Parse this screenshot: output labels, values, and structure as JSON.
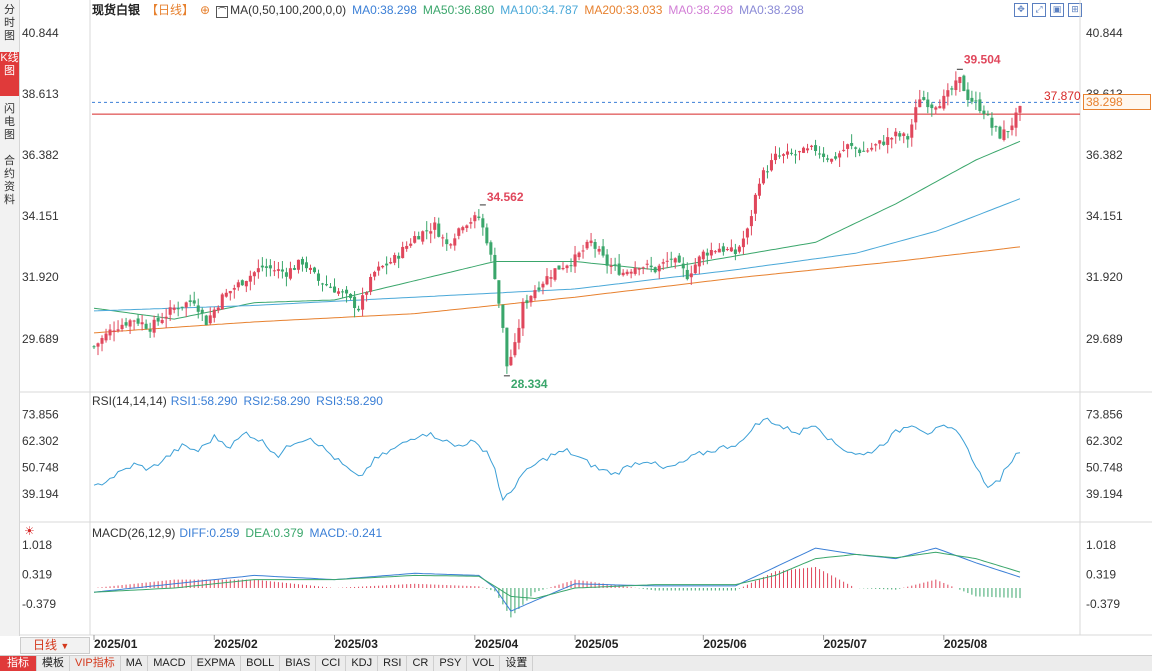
{
  "sidebar": {
    "tabs": [
      "分时图",
      "K线图",
      "闪电图",
      "合约资料"
    ],
    "active": 1
  },
  "header": {
    "name": "现货白银",
    "period": "【日线】",
    "ma_label": "MA(0,50,100,200,0,0)",
    "ma_items": [
      {
        "text": "MA0:38.298",
        "color": "#3b7fd6"
      },
      {
        "text": "MA50:36.880",
        "color": "#3aa66b"
      },
      {
        "text": "MA100:34.787",
        "color": "#4aa8d8"
      },
      {
        "text": "MA200:33.033",
        "color": "#e7812f"
      },
      {
        "text": "MA0:38.298",
        "color": "#d27ed6"
      },
      {
        "text": "MA0:38.298",
        "color": "#8a8ad6"
      }
    ]
  },
  "price_axis": [
    "40.844",
    "38.613",
    "36.382",
    "34.151",
    "31.920",
    "29.689"
  ],
  "price_tags": {
    "last": "38.298",
    "line": "37.870"
  },
  "annotations": {
    "high1": "34.562",
    "low": "28.334",
    "high2": "39.504"
  },
  "rsi": {
    "title": "RSI(14,14,14)",
    "items": [
      {
        "text": "RSI1:58.290"
      },
      {
        "text": "RSI2:58.290"
      },
      {
        "text": "RSI3:58.290"
      }
    ],
    "axis": [
      "73.856",
      "62.302",
      "50.748",
      "39.194"
    ]
  },
  "macd": {
    "title": "MACD(26,12,9)",
    "items": [
      {
        "text": "DIFF:0.259",
        "color": "#3b7fd6"
      },
      {
        "text": "DEA:0.379",
        "color": "#3aa66b"
      },
      {
        "text": "MACD:-0.241",
        "color": "#3b7fd6"
      }
    ],
    "axis": [
      "1.018",
      "0.319",
      "-0.379"
    ]
  },
  "x_axis": [
    "2025/01",
    "2025/02",
    "2025/03",
    "2025/04",
    "2025/05",
    "2025/06",
    "2025/07",
    "2025/08"
  ],
  "period_label": "日线",
  "bottom_tabs": [
    "指标",
    "模板",
    "VIP指标",
    "MA",
    "MACD",
    "EXPMA",
    "BOLL",
    "BIAS",
    "CCI",
    "KDJ",
    "RSI",
    "CR",
    "PSY",
    "VOL",
    "设置"
  ],
  "chart_data": {
    "type": "candlestick",
    "title": "现货白银【日线】",
    "ylim": [
      28.0,
      41.3
    ],
    "keypoints": [
      [
        0,
        29.4
      ],
      [
        5,
        30.1
      ],
      [
        10,
        30.4
      ],
      [
        14,
        30.1
      ],
      [
        20,
        30.8
      ],
      [
        25,
        31.1
      ],
      [
        28,
        30.3
      ],
      [
        32,
        31.2
      ],
      [
        38,
        31.9
      ],
      [
        42,
        32.3
      ],
      [
        48,
        32.1
      ],
      [
        52,
        32.5
      ],
      [
        56,
        31.8
      ],
      [
        60,
        31.5
      ],
      [
        63,
        31.2
      ],
      [
        66,
        30.8
      ],
      [
        70,
        32.1
      ],
      [
        75,
        32.6
      ],
      [
        80,
        33.4
      ],
      [
        85,
        33.8
      ],
      [
        88,
        33.1
      ],
      [
        92,
        33.9
      ],
      [
        96,
        34.1
      ],
      [
        98,
        33.3
      ],
      [
        100,
        32.0
      ],
      [
        102,
        30.0
      ],
      [
        103,
        28.7
      ],
      [
        105,
        29.4
      ],
      [
        107,
        30.9
      ],
      [
        110,
        31.5
      ],
      [
        115,
        32.2
      ],
      [
        120,
        32.6
      ],
      [
        124,
        33.2
      ],
      [
        128,
        32.4
      ],
      [
        132,
        32.1
      ],
      [
        136,
        32.4
      ],
      [
        140,
        32.2
      ],
      [
        144,
        32.6
      ],
      [
        148,
        32.0
      ],
      [
        152,
        32.8
      ],
      [
        156,
        33.0
      ],
      [
        160,
        32.8
      ],
      [
        163,
        33.6
      ],
      [
        166,
        35.5
      ],
      [
        170,
        36.3
      ],
      [
        175,
        36.4
      ],
      [
        180,
        36.6
      ],
      [
        184,
        36.2
      ],
      [
        188,
        36.7
      ],
      [
        192,
        36.5
      ],
      [
        196,
        36.8
      ],
      [
        200,
        37.1
      ],
      [
        203,
        37.0
      ],
      [
        206,
        38.5
      ],
      [
        209,
        38.2
      ],
      [
        212,
        38.4
      ],
      [
        216,
        39.1
      ],
      [
        218,
        38.5
      ],
      [
        222,
        38.0
      ],
      [
        224,
        37.4
      ],
      [
        226,
        37.1
      ],
      [
        228,
        37.3
      ],
      [
        231,
        38.0
      ]
    ],
    "ma_lines": [
      {
        "name": "MA50",
        "points": [
          [
            0,
            30.8
          ],
          [
            20,
            30.4
          ],
          [
            40,
            31.0
          ],
          [
            60,
            31.1
          ],
          [
            80,
            31.8
          ],
          [
            100,
            32.5
          ],
          [
            120,
            32.5
          ],
          [
            140,
            32.2
          ],
          [
            160,
            32.7
          ],
          [
            180,
            33.2
          ],
          [
            200,
            34.6
          ],
          [
            220,
            36.2
          ],
          [
            231,
            36.88
          ]
        ]
      },
      {
        "name": "MA100",
        "points": [
          [
            0,
            30.7
          ],
          [
            40,
            30.9
          ],
          [
            80,
            31.2
          ],
          [
            120,
            31.5
          ],
          [
            160,
            32.2
          ],
          [
            190,
            32.8
          ],
          [
            210,
            33.6
          ],
          [
            231,
            34.787
          ]
        ]
      },
      {
        "name": "MA200",
        "points": [
          [
            0,
            29.9
          ],
          [
            40,
            30.3
          ],
          [
            80,
            30.6
          ],
          [
            120,
            31.2
          ],
          [
            160,
            31.9
          ],
          [
            200,
            32.5
          ],
          [
            231,
            33.033
          ]
        ]
      }
    ],
    "rsi_keypoints": [
      [
        0,
        42
      ],
      [
        6,
        48
      ],
      [
        10,
        52
      ],
      [
        14,
        50
      ],
      [
        18,
        55
      ],
      [
        22,
        60
      ],
      [
        26,
        58
      ],
      [
        30,
        64
      ],
      [
        34,
        60
      ],
      [
        38,
        66
      ],
      [
        42,
        62
      ],
      [
        46,
        56
      ],
      [
        50,
        62
      ],
      [
        54,
        64
      ],
      [
        58,
        58
      ],
      [
        62,
        52
      ],
      [
        66,
        46
      ],
      [
        70,
        54
      ],
      [
        74,
        58
      ],
      [
        78,
        62
      ],
      [
        82,
        66
      ],
      [
        86,
        64
      ],
      [
        90,
        60
      ],
      [
        94,
        62
      ],
      [
        98,
        58
      ],
      [
        100,
        50
      ],
      [
        102,
        36
      ],
      [
        104,
        40
      ],
      [
        106,
        46
      ],
      [
        110,
        52
      ],
      [
        114,
        56
      ],
      [
        118,
        58
      ],
      [
        122,
        54
      ],
      [
        126,
        50
      ],
      [
        130,
        48
      ],
      [
        134,
        52
      ],
      [
        138,
        54
      ],
      [
        142,
        50
      ],
      [
        146,
        52
      ],
      [
        150,
        56
      ],
      [
        154,
        58
      ],
      [
        158,
        60
      ],
      [
        162,
        62
      ],
      [
        164,
        68
      ],
      [
        168,
        72
      ],
      [
        172,
        68
      ],
      [
        176,
        66
      ],
      [
        180,
        70
      ],
      [
        184,
        62
      ],
      [
        188,
        58
      ],
      [
        192,
        56
      ],
      [
        196,
        60
      ],
      [
        200,
        66
      ],
      [
        204,
        70
      ],
      [
        208,
        66
      ],
      [
        212,
        68
      ],
      [
        216,
        66
      ],
      [
        218,
        58
      ],
      [
        220,
        52
      ],
      [
        222,
        44
      ],
      [
        224,
        42
      ],
      [
        226,
        46
      ],
      [
        228,
        52
      ],
      [
        231,
        58.29
      ]
    ],
    "diff_keypoints": [
      [
        0,
        -0.1
      ],
      [
        20,
        0.1
      ],
      [
        40,
        0.3
      ],
      [
        60,
        0.2
      ],
      [
        80,
        0.35
      ],
      [
        96,
        0.3
      ],
      [
        100,
        0.0
      ],
      [
        104,
        -0.55
      ],
      [
        110,
        -0.3
      ],
      [
        120,
        0.1
      ],
      [
        140,
        0.05
      ],
      [
        160,
        0.05
      ],
      [
        170,
        0.5
      ],
      [
        180,
        0.95
      ],
      [
        190,
        0.8
      ],
      [
        200,
        0.7
      ],
      [
        210,
        0.95
      ],
      [
        220,
        0.6
      ],
      [
        231,
        0.259
      ]
    ],
    "dea_keypoints": [
      [
        0,
        -0.1
      ],
      [
        20,
        0.0
      ],
      [
        40,
        0.2
      ],
      [
        60,
        0.2
      ],
      [
        80,
        0.3
      ],
      [
        96,
        0.28
      ],
      [
        104,
        -0.2
      ],
      [
        110,
        -0.25
      ],
      [
        120,
        0.0
      ],
      [
        140,
        0.08
      ],
      [
        160,
        0.08
      ],
      [
        170,
        0.3
      ],
      [
        180,
        0.7
      ],
      [
        190,
        0.8
      ],
      [
        200,
        0.72
      ],
      [
        210,
        0.85
      ],
      [
        220,
        0.7
      ],
      [
        231,
        0.379
      ]
    ]
  }
}
